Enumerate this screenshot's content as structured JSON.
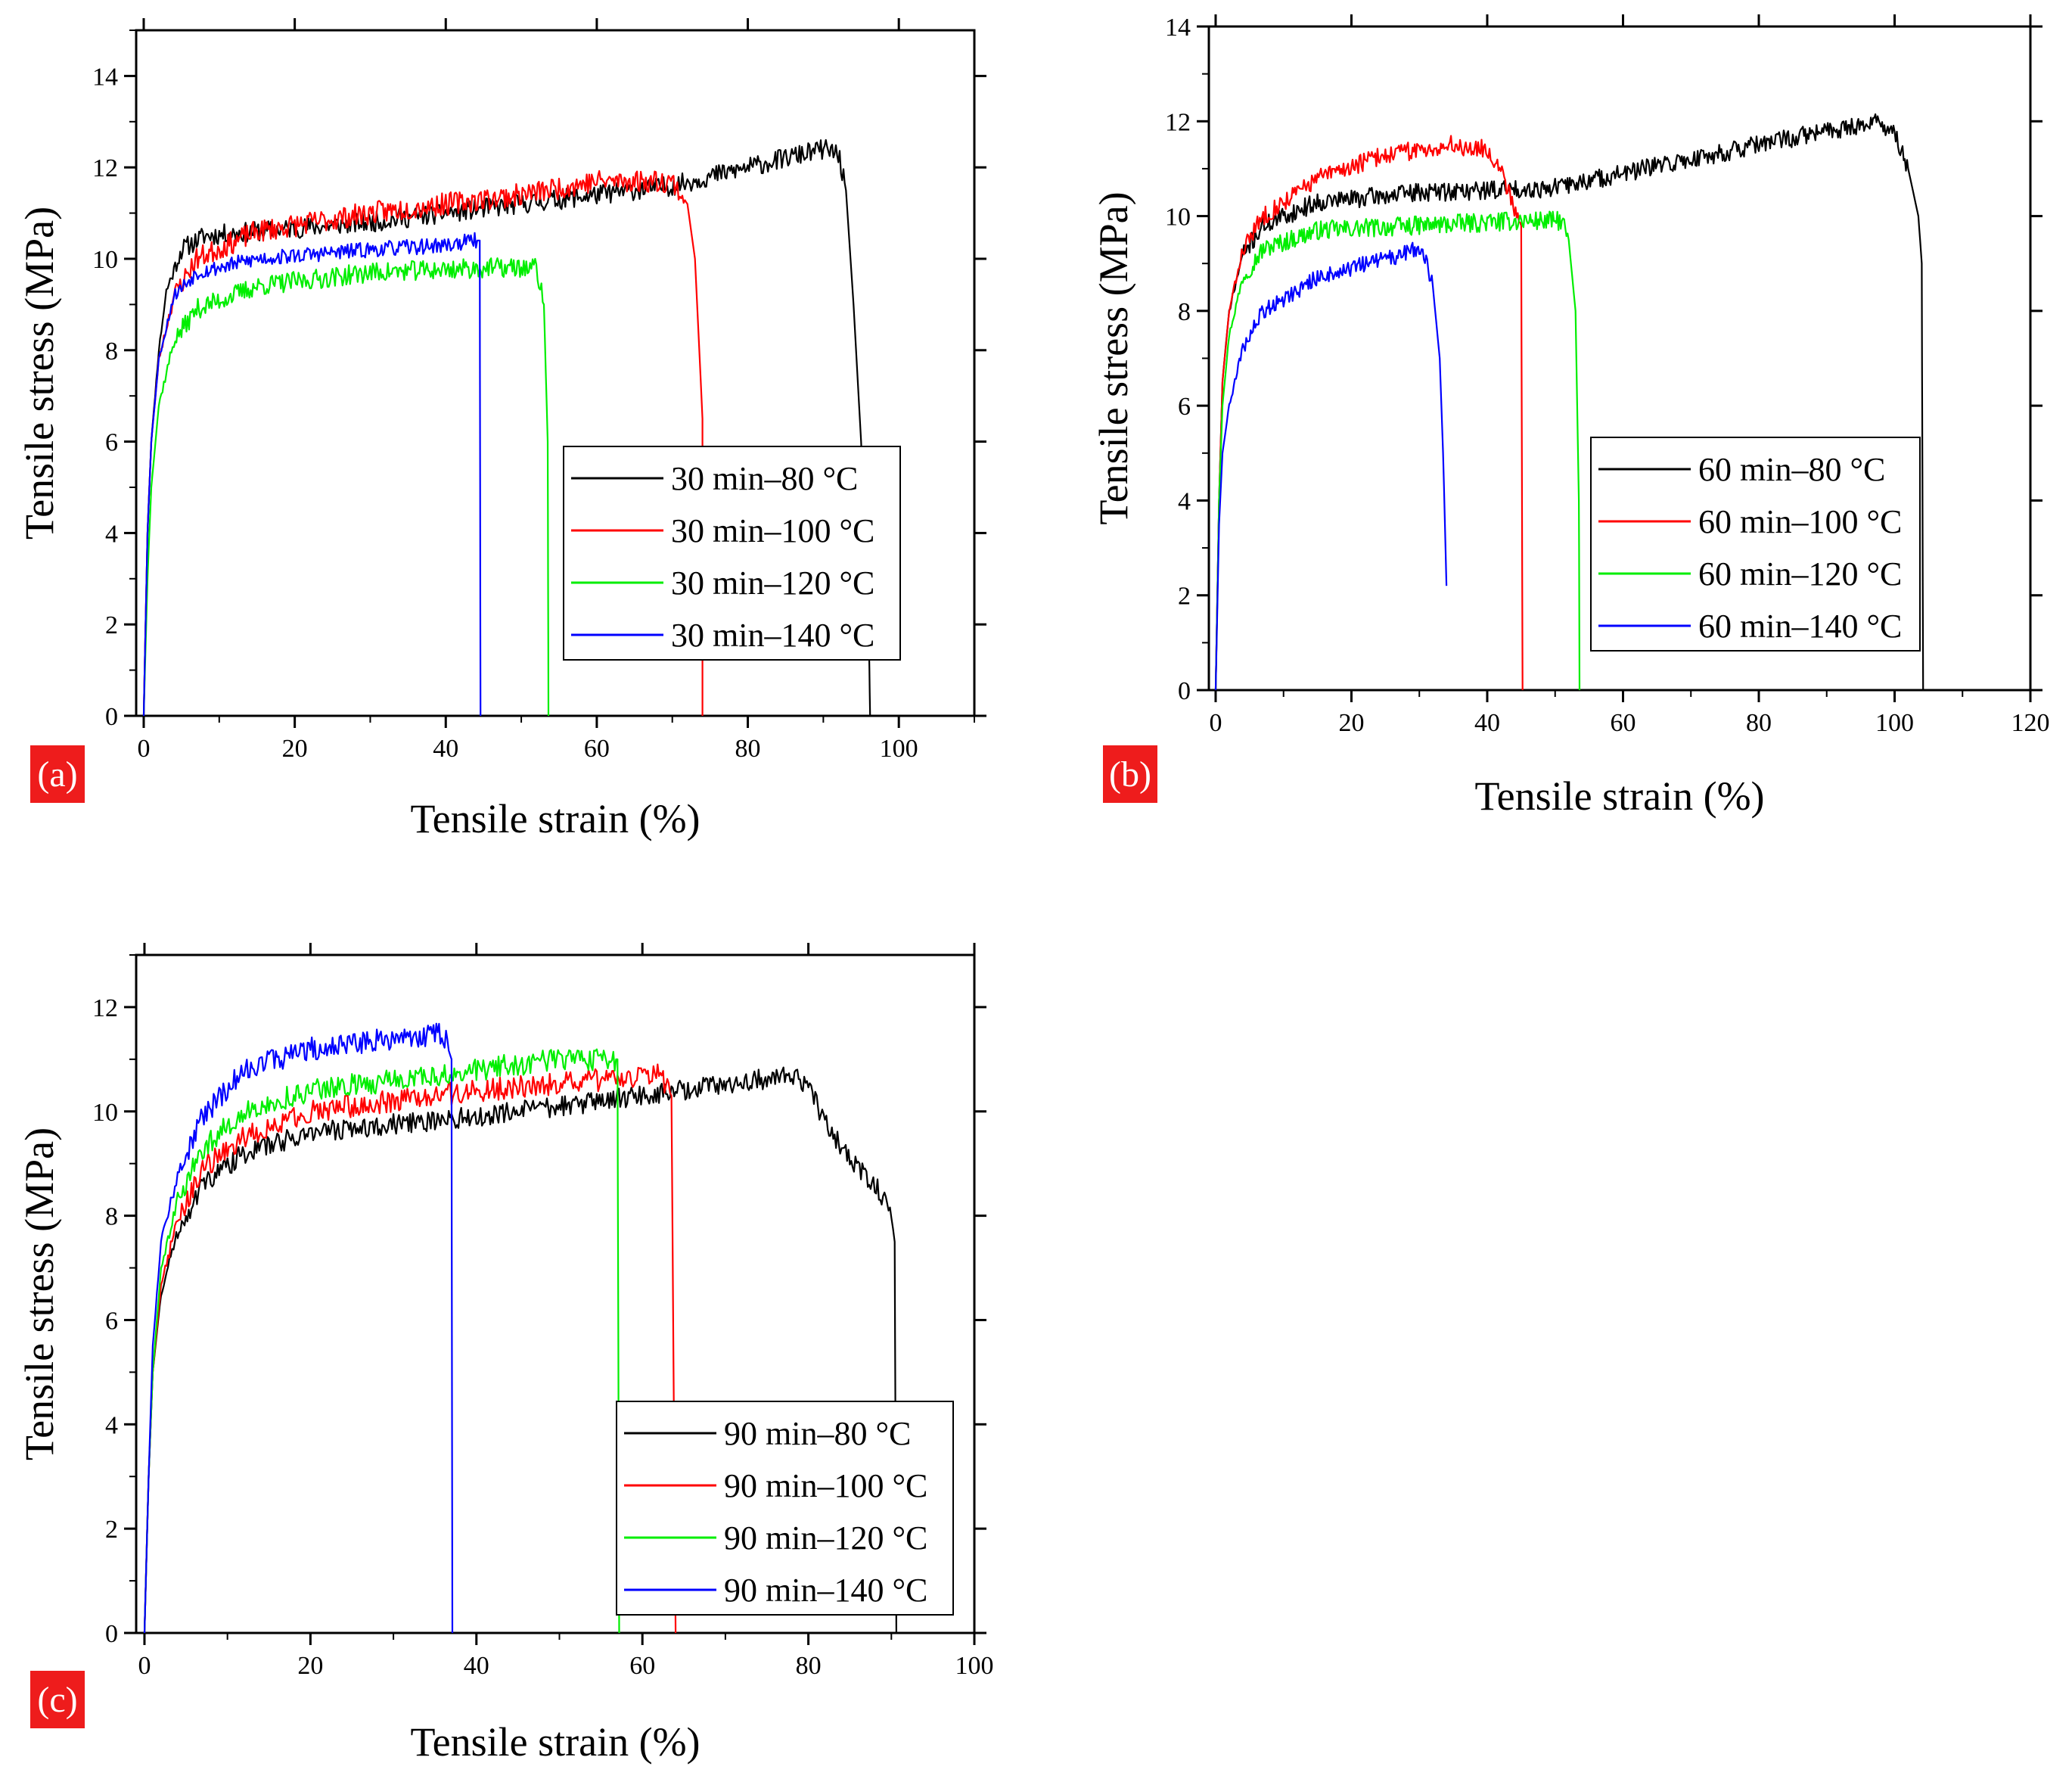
{
  "figure": {
    "description_free": true
  },
  "chart_data": [
    {
      "type": "line",
      "panel_label": "(a)",
      "xlabel": "Tensile strain (%)",
      "ylabel": "Tensile stress (MPa)",
      "xlim": [
        -1,
        110
      ],
      "ylim": [
        0,
        15
      ],
      "xticks": [
        0,
        20,
        40,
        60,
        80,
        100
      ],
      "yticks": [
        0,
        2,
        4,
        6,
        8,
        10,
        12,
        14
      ],
      "grid": false,
      "legend_position": "lower-right",
      "series": [
        {
          "name": "30 min–80 °C",
          "color": "#000000",
          "seed": 11,
          "noise": 0.22,
          "points": [
            [
              0,
              0
            ],
            [
              0.5,
              4
            ],
            [
              1,
              6
            ],
            [
              2,
              8
            ],
            [
              3,
              9.3
            ],
            [
              5,
              10.2
            ],
            [
              8,
              10.5
            ],
            [
              15,
              10.6
            ],
            [
              30,
              10.8
            ],
            [
              50,
              11.2
            ],
            [
              70,
              11.6
            ],
            [
              80,
              12
            ],
            [
              90,
              12.4
            ],
            [
              92,
              12.3
            ],
            [
              93,
              11.5
            ],
            [
              94,
              9
            ],
            [
              95,
              6
            ],
            [
              96,
              2
            ],
            [
              96.2,
              0
            ]
          ]
        },
        {
          "name": "30 min–100 °C",
          "color": "#ff0000",
          "seed": 23,
          "noise": 0.25,
          "points": [
            [
              0,
              0
            ],
            [
              0.5,
              4
            ],
            [
              1,
              6
            ],
            [
              2,
              7.8
            ],
            [
              4,
              9.2
            ],
            [
              7,
              10
            ],
            [
              15,
              10.6
            ],
            [
              30,
              11
            ],
            [
              50,
              11.4
            ],
            [
              60,
              11.7
            ],
            [
              70,
              11.7
            ],
            [
              72,
              11.2
            ],
            [
              73,
              10
            ],
            [
              74,
              6.5
            ],
            [
              74,
              0
            ]
          ]
        },
        {
          "name": "30 min–120 °C",
          "color": "#00ee00",
          "seed": 37,
          "noise": 0.22,
          "points": [
            [
              0,
              0
            ],
            [
              0.5,
              3
            ],
            [
              1,
              5
            ],
            [
              2,
              6.8
            ],
            [
              4,
              8.2
            ],
            [
              7,
              8.9
            ],
            [
              15,
              9.4
            ],
            [
              30,
              9.7
            ],
            [
              45,
              9.8
            ],
            [
              52,
              9.8
            ],
            [
              53,
              9
            ],
            [
              53.5,
              6
            ],
            [
              53.6,
              0
            ]
          ]
        },
        {
          "name": "30 min–140 °C",
          "color": "#0000ff",
          "seed": 53,
          "noise": 0.17,
          "points": [
            [
              0,
              0
            ],
            [
              0.5,
              4
            ],
            [
              1,
              6
            ],
            [
              2,
              7.8
            ],
            [
              4,
              9.2
            ],
            [
              7,
              9.7
            ],
            [
              15,
              10
            ],
            [
              30,
              10.2
            ],
            [
              40,
              10.3
            ],
            [
              44,
              10.4
            ],
            [
              44.5,
              10.4
            ],
            [
              44.6,
              0
            ]
          ]
        }
      ]
    },
    {
      "type": "line",
      "panel_label": "(b)",
      "xlabel": "Tensile strain (%)",
      "ylabel": "Tensile stress (MPa)",
      "xlim": [
        -1,
        120
      ],
      "ylim": [
        0,
        14
      ],
      "xticks": [
        0,
        20,
        40,
        60,
        80,
        100,
        120
      ],
      "yticks": [
        0,
        2,
        4,
        6,
        8,
        10,
        12,
        14
      ],
      "grid": false,
      "legend_position": "lower-right",
      "series": [
        {
          "name": "60 min–80 °C",
          "color": "#000000",
          "seed": 71,
          "noise": 0.2,
          "points": [
            [
              0,
              0
            ],
            [
              0.5,
              4
            ],
            [
              1,
              6.5
            ],
            [
              2,
              8
            ],
            [
              4,
              9.2
            ],
            [
              7,
              9.8
            ],
            [
              15,
              10.3
            ],
            [
              30,
              10.5
            ],
            [
              50,
              10.6
            ],
            [
              70,
              11.2
            ],
            [
              90,
              11.8
            ],
            [
              98,
              12
            ],
            [
              100,
              11.7
            ],
            [
              102,
              11
            ],
            [
              103.5,
              10
            ],
            [
              104,
              9
            ],
            [
              104.2,
              0
            ]
          ]
        },
        {
          "name": "60 min–100 °C",
          "color": "#ff0000",
          "seed": 83,
          "noise": 0.2,
          "points": [
            [
              0,
              0
            ],
            [
              0.5,
              4
            ],
            [
              1,
              6.5
            ],
            [
              2,
              8
            ],
            [
              4,
              9.3
            ],
            [
              7,
              10
            ],
            [
              15,
              10.8
            ],
            [
              25,
              11.3
            ],
            [
              35,
              11.5
            ],
            [
              40,
              11.4
            ],
            [
              42,
              11
            ],
            [
              44,
              10.2
            ],
            [
              45,
              9.8
            ],
            [
              45.2,
              0
            ]
          ]
        },
        {
          "name": "60 min–120 °C",
          "color": "#00ee00",
          "seed": 97,
          "noise": 0.2,
          "points": [
            [
              0,
              0
            ],
            [
              0.5,
              4
            ],
            [
              1,
              6
            ],
            [
              2,
              7.5
            ],
            [
              4,
              8.7
            ],
            [
              7,
              9.3
            ],
            [
              15,
              9.7
            ],
            [
              30,
              9.8
            ],
            [
              45,
              9.9
            ],
            [
              51,
              9.9
            ],
            [
              52,
              9.5
            ],
            [
              53,
              8
            ],
            [
              53.5,
              4
            ],
            [
              53.6,
              0
            ]
          ]
        },
        {
          "name": "60 min–140 °C",
          "color": "#0000ff",
          "seed": 109,
          "noise": 0.18,
          "points": [
            [
              0,
              0
            ],
            [
              0.5,
              3.5
            ],
            [
              1,
              5
            ],
            [
              2,
              6
            ],
            [
              4,
              7.2
            ],
            [
              7,
              8
            ],
            [
              15,
              8.7
            ],
            [
              25,
              9.1
            ],
            [
              30,
              9.3
            ],
            [
              31,
              9.1
            ],
            [
              32,
              8.5
            ],
            [
              33,
              7
            ],
            [
              33.5,
              5
            ],
            [
              34,
              2.2
            ]
          ]
        }
      ]
    },
    {
      "type": "line",
      "panel_label": "(c)",
      "xlabel": "Tensile strain (%)",
      "ylabel": "Tensile stress (MPa)",
      "xlim": [
        -1,
        100
      ],
      "ylim": [
        0,
        13
      ],
      "xticks": [
        0,
        20,
        40,
        60,
        80,
        100
      ],
      "yticks": [
        0,
        2,
        4,
        6,
        8,
        10,
        12
      ],
      "grid": false,
      "legend_position": "lower-right",
      "series": [
        {
          "name": "90 min–80 °C",
          "color": "#000000",
          "seed": 131,
          "noise": 0.2,
          "points": [
            [
              0,
              0
            ],
            [
              0.5,
              3
            ],
            [
              1,
              5
            ],
            [
              2,
              6.5
            ],
            [
              4,
              7.7
            ],
            [
              7,
              8.6
            ],
            [
              12,
              9.2
            ],
            [
              20,
              9.6
            ],
            [
              40,
              9.9
            ],
            [
              60,
              10.3
            ],
            [
              78,
              10.7
            ],
            [
              80,
              10.5
            ],
            [
              82,
              9.8
            ],
            [
              85,
              9.1
            ],
            [
              88,
              8.6
            ],
            [
              90,
              8
            ],
            [
              90.4,
              7.5
            ],
            [
              90.6,
              0
            ]
          ]
        },
        {
          "name": "90 min–100 °C",
          "color": "#ff0000",
          "seed": 149,
          "noise": 0.22,
          "points": [
            [
              0,
              0
            ],
            [
              0.5,
              3
            ],
            [
              1,
              5
            ],
            [
              2,
              6.7
            ],
            [
              4,
              7.9
            ],
            [
              7,
              8.9
            ],
            [
              12,
              9.5
            ],
            [
              20,
              10
            ],
            [
              40,
              10.4
            ],
            [
              55,
              10.6
            ],
            [
              62,
              10.7
            ],
            [
              63.5,
              10.3
            ],
            [
              64,
              0
            ]
          ]
        },
        {
          "name": "90 min–120 °C",
          "color": "#00ee00",
          "seed": 167,
          "noise": 0.22,
          "points": [
            [
              0,
              0
            ],
            [
              0.5,
              3
            ],
            [
              1,
              5
            ],
            [
              2,
              7
            ],
            [
              4,
              8.3
            ],
            [
              7,
              9.3
            ],
            [
              12,
              10
            ],
            [
              20,
              10.4
            ],
            [
              40,
              10.8
            ],
            [
              50,
              11
            ],
            [
              57,
              11
            ],
            [
              57.2,
              0
            ]
          ]
        },
        {
          "name": "90 min–140 °C",
          "color": "#0000ff",
          "seed": 181,
          "noise": 0.22,
          "points": [
            [
              0,
              0
            ],
            [
              0.5,
              3
            ],
            [
              1,
              5.5
            ],
            [
              2,
              7.5
            ],
            [
              4,
              8.8
            ],
            [
              7,
              9.9
            ],
            [
              12,
              10.8
            ],
            [
              20,
              11.2
            ],
            [
              30,
              11.4
            ],
            [
              36,
              11.5
            ],
            [
              37,
              11
            ],
            [
              37.1,
              0
            ]
          ]
        }
      ]
    }
  ]
}
